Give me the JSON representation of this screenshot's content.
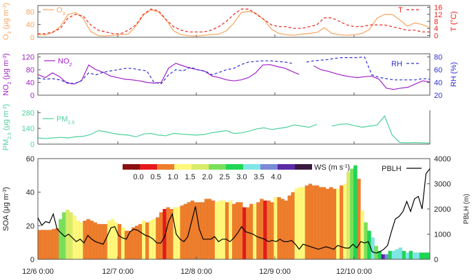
{
  "colors": {
    "o3": "#f7a35c",
    "temp": "#e8211b",
    "no2": "#a020c8",
    "rh": "#2e2fd0",
    "pm25": "#4cd19b",
    "pblh": "#000000",
    "ws_bins": [
      "#8b1010",
      "#e6191c",
      "#ee7d2c",
      "#fff87a",
      "#d9ec6a",
      "#79e05a",
      "#1fd655",
      "#7fe7e7",
      "#7a8ad8",
      "#5b2aa7",
      "#3b1a3f"
    ]
  },
  "x_ticks": [
    "12/6 0:00",
    "12/7 0:00",
    "12/8 0:00",
    "12/9 0:00",
    "12/10 0:00"
  ],
  "chart_data": [
    {
      "type": "line",
      "panel": "o3-temperature",
      "series": [
        {
          "name_main": "O",
          "name_sub": "3",
          "axis": "left",
          "values": [
            8,
            7,
            15,
            35,
            72,
            78,
            60,
            18,
            5,
            4,
            6,
            8,
            10,
            35,
            70,
            86,
            80,
            55,
            20,
            8,
            5,
            4,
            6,
            8,
            10,
            20,
            45,
            78,
            82,
            75,
            55,
            25,
            12,
            8,
            6,
            10,
            12,
            15,
            30,
            12,
            8,
            6,
            8,
            12,
            25,
            60,
            72,
            72,
            55,
            35,
            45,
            40,
            30
          ]
        },
        {
          "name_main": "T",
          "name_sub": "",
          "axis": "right",
          "values": [
            1,
            1,
            2,
            4,
            10,
            12,
            11,
            6,
            3,
            2,
            1,
            1,
            3,
            6,
            12,
            15,
            14,
            9,
            5,
            3,
            2,
            2,
            2,
            3,
            5,
            8,
            12,
            15,
            15,
            12,
            9,
            6,
            5,
            5,
            4,
            4,
            5,
            6,
            10,
            10,
            8,
            6,
            5,
            5,
            6,
            6,
            6,
            5,
            4,
            3,
            3,
            2,
            2
          ]
        }
      ],
      "left_axis": {
        "label": "O",
        "label_sub": "3",
        "label_unit": " (μg m",
        "label_exp": "-3",
        "label_end": ")",
        "ticks": [
          0,
          40,
          80
        ],
        "ylim": [
          0,
          100
        ]
      },
      "right_axis": {
        "label": "T (°C)",
        "ticks": [
          0,
          4,
          8,
          12,
          16
        ],
        "ylim": [
          -1,
          17
        ]
      }
    },
    {
      "type": "line",
      "panel": "no2-rh",
      "series": [
        {
          "name_main": "NO",
          "name_sub": "2",
          "axis": "left",
          "values": [
            65,
            55,
            70,
            58,
            38,
            35,
            45,
            95,
            80,
            72,
            60,
            55,
            50,
            48,
            45,
            40,
            38,
            40,
            85,
            100,
            92,
            85,
            80,
            75,
            60,
            55,
            48,
            45,
            48,
            55,
            70,
            95,
            96,
            90,
            85,
            75,
            65,
            null,
            92,
            80,
            75,
            68,
            62,
            58,
            55,
            58,
            60,
            50,
            22,
            18,
            22,
            25,
            35,
            45,
            42
          ]
        },
        {
          "name_main": "RH",
          "name_sub": "",
          "axis": "right",
          "values": [
            47,
            45,
            46,
            44,
            40,
            38,
            43,
            55,
            52,
            56,
            58,
            60,
            62,
            62,
            60,
            58,
            40,
            38,
            52,
            60,
            58,
            64,
            60,
            58,
            52,
            56,
            60,
            62,
            68,
            72,
            73,
            74,
            74,
            73,
            72,
            70,
            null,
            72,
            74,
            75,
            76,
            78,
            79,
            79,
            79,
            80,
            52,
            48,
            46,
            44,
            44,
            44,
            44,
            46,
            45
          ]
        }
      ],
      "left_axis": {
        "label": "NO",
        "label_sub": "2",
        "label_unit": " (μg m",
        "label_exp": "-3",
        "label_end": ")",
        "ticks": [
          0,
          40,
          80,
          120
        ],
        "ylim": [
          0,
          130
        ]
      },
      "right_axis": {
        "label": "RH (%)",
        "ticks": [
          20,
          40,
          60,
          80
        ],
        "ylim": [
          20,
          85
        ]
      }
    },
    {
      "type": "line",
      "panel": "pm25",
      "series": [
        {
          "name_main": "PM",
          "name_sub": "2.5",
          "axis": "left",
          "values": [
            55,
            50,
            55,
            60,
            55,
            65,
            70,
            85,
            120,
            110,
            95,
            85,
            80,
            65,
            90,
            95,
            80,
            75,
            95,
            90,
            85,
            80,
            85,
            100,
            110,
            120,
            95,
            100,
            115,
            135,
            145,
            130,
            140,
            150,
            170,
            160,
            150,
            175,
            null,
            160,
            175,
            180,
            165,
            150,
            160,
            170,
            250,
            80,
            15,
            12,
            15,
            12,
            10
          ]
        }
      ],
      "left_axis": {
        "label": "PM",
        "label_sub": "2.5",
        "label_unit": " (μg m",
        "label_exp": "-3",
        "label_end": ")",
        "ticks": [
          0,
          140,
          280
        ],
        "ylim": [
          0,
          300
        ]
      }
    },
    {
      "type": "bar",
      "panel": "soa-pblh",
      "xlabel": "",
      "ylabel": "SOA (μg m",
      "ylabel_exp": "-3",
      "ylabel_end": ")",
      "ylim": [
        0,
        60
      ],
      "yticks": [
        0,
        20,
        40,
        60
      ],
      "bars": [
        {
          "v": 17.5,
          "c": 2
        },
        {
          "v": 17.5,
          "c": 2
        },
        {
          "v": 17.5,
          "c": 2
        },
        {
          "v": 17.5,
          "c": 2
        },
        {
          "v": 18,
          "c": 2
        },
        {
          "v": 18.5,
          "c": 2
        },
        {
          "v": 24,
          "c": 5
        },
        {
          "v": 28,
          "c": 5
        },
        {
          "v": 29.5,
          "c": 4
        },
        {
          "v": 28,
          "c": 4
        },
        {
          "v": 26,
          "c": 3
        },
        {
          "v": 23,
          "c": 3
        },
        {
          "v": 22,
          "c": 3
        },
        {
          "v": 23,
          "c": 2
        },
        {
          "v": 24,
          "c": 2
        },
        {
          "v": 23,
          "c": 2
        },
        {
          "v": 22,
          "c": 2
        },
        {
          "v": 21,
          "c": 2
        },
        {
          "v": 21,
          "c": 2
        },
        {
          "v": 21,
          "c": 2
        },
        {
          "v": 23,
          "c": 3
        },
        {
          "v": 24,
          "c": 3
        },
        {
          "v": 22,
          "c": 3
        },
        {
          "v": 21,
          "c": 2
        },
        {
          "v": 19,
          "c": 3
        },
        {
          "v": 17,
          "c": 2
        },
        {
          "v": 17,
          "c": 2
        },
        {
          "v": 19,
          "c": 2
        },
        {
          "v": 20,
          "c": 2
        },
        {
          "v": 21,
          "c": 2
        },
        {
          "v": 23,
          "c": 3
        },
        {
          "v": 22,
          "c": 2
        },
        {
          "v": 23,
          "c": 3
        },
        {
          "v": 24,
          "c": 3
        },
        {
          "v": 25,
          "c": 2
        },
        {
          "v": 28,
          "c": 2
        },
        {
          "v": 30,
          "c": 1
        },
        {
          "v": 31,
          "c": 2
        },
        {
          "v": 30,
          "c": 2
        },
        {
          "v": 31,
          "c": 3
        },
        {
          "v": 31,
          "c": 3
        },
        {
          "v": 32,
          "c": 2
        },
        {
          "v": 33,
          "c": 2
        },
        {
          "v": 34,
          "c": 2
        },
        {
          "v": 35,
          "c": 2
        },
        {
          "v": 34,
          "c": 2
        },
        {
          "v": 34,
          "c": 2
        },
        {
          "v": 34,
          "c": 2
        },
        {
          "v": 36,
          "c": 2
        },
        {
          "v": 36,
          "c": 2
        },
        {
          "v": 35,
          "c": 2
        },
        {
          "v": 34,
          "c": 3
        },
        {
          "v": 35,
          "c": 3
        },
        {
          "v": 35,
          "c": 3
        },
        {
          "v": 34,
          "c": 2
        },
        {
          "v": 35,
          "c": 3
        },
        {
          "v": 33,
          "c": 2
        },
        {
          "v": 34,
          "c": 2
        },
        {
          "v": 34,
          "c": 2
        },
        {
          "v": 31,
          "c": 1
        },
        {
          "v": 31,
          "c": 2
        },
        {
          "v": 33,
          "c": 2
        },
        {
          "v": 33,
          "c": 3
        },
        {
          "v": 34,
          "c": 2
        },
        {
          "v": 36,
          "c": 2
        },
        {
          "v": 35,
          "c": 1
        },
        {
          "v": 35,
          "c": 2
        },
        {
          "v": 34,
          "c": 2
        },
        {
          "v": 37,
          "c": 3
        },
        {
          "v": 37,
          "c": 2
        },
        {
          "v": 36,
          "c": 2
        },
        {
          "v": 35,
          "c": 2
        },
        {
          "v": 38,
          "c": 2
        },
        {
          "v": 40,
          "c": 2
        },
        {
          "v": 42,
          "c": 3
        },
        {
          "v": 43,
          "c": 3
        },
        {
          "v": 43,
          "c": 3
        },
        {
          "v": 44,
          "c": 2
        },
        {
          "v": 45,
          "c": 2
        },
        {
          "v": 44,
          "c": 2
        },
        {
          "v": 44,
          "c": 2
        },
        {
          "v": 43,
          "c": 2
        },
        {
          "v": 43,
          "c": 2
        },
        {
          "v": 42,
          "c": 2
        },
        {
          "v": 43,
          "c": 2
        },
        {
          "v": 42,
          "c": 2
        },
        {
          "v": 42,
          "c": 3
        },
        {
          "v": 44,
          "c": 2
        },
        {
          "v": 45,
          "c": 3
        },
        {
          "v": 52,
          "c": 4
        },
        {
          "v": 54,
          "c": 5
        },
        {
          "v": 56,
          "c": 6
        },
        {
          "v": 48,
          "c": 2
        },
        {
          "v": 29,
          "c": 3
        },
        {
          "v": 22,
          "c": 5
        },
        {
          "v": 17,
          "c": 6
        },
        {
          "v": 13,
          "c": 7
        },
        {
          "v": 8,
          "c": 5
        },
        {
          "v": 5,
          "c": 6
        },
        {
          "v": 3,
          "c": 9
        },
        {
          "v": 3,
          "c": 8
        },
        {
          "v": 5,
          "c": 6
        },
        {
          "v": 5,
          "c": 7
        },
        {
          "v": 6,
          "c": 7
        },
        {
          "v": 7,
          "c": 7
        },
        {
          "v": 5,
          "c": 6
        },
        {
          "v": 4,
          "c": 7
        },
        {
          "v": 5,
          "c": 6
        },
        {
          "v": 4,
          "c": 7
        },
        {
          "v": 4,
          "c": 7
        },
        {
          "v": 4,
          "c": 6
        },
        {
          "v": 4,
          "c": 6
        },
        {
          "v": 4,
          "c": 6
        }
      ],
      "pblh": {
        "name": "PBLH",
        "axis_label": "PBLH (m)",
        "ticks": [
          0,
          1000,
          2000,
          3000,
          4000
        ],
        "ylim": [
          0,
          4000
        ],
        "values": [
          1650,
          1350,
          1500,
          1450,
          1800,
          1200,
          1050,
          900,
          1000,
          850,
          700,
          800,
          650,
          950,
          800,
          700,
          650,
          600,
          900,
          1250,
          1300,
          950,
          850,
          800,
          1100,
          1200,
          1150,
          1050,
          950,
          900,
          800,
          650,
          650,
          900,
          1500,
          1800,
          1000,
          800,
          700,
          900,
          1500,
          2100,
          1200,
          800,
          800,
          800,
          900,
          700,
          800,
          800,
          700,
          850,
          1050,
          1300,
          1100,
          1050,
          1000,
          900,
          850,
          800,
          700,
          750,
          700,
          800,
          700,
          700,
          750,
          600,
          400,
          600,
          550,
          500,
          450,
          400,
          450,
          500,
          450,
          400,
          550,
          500,
          450,
          450,
          600,
          450,
          700,
          650,
          700,
          300,
          250,
          300,
          400,
          550,
          1100,
          1600,
          1700,
          1900,
          2300,
          1900,
          2400,
          2500,
          2000,
          3400,
          3600
        ]
      },
      "ws_legend": {
        "title_main": "WS (m s",
        "title_exp": "-1",
        "title_end": ")",
        "labels": [
          "0.0",
          "0.5",
          "1.0",
          "1.5",
          "2.0",
          "2.5",
          "3.0",
          "3.5",
          "4.0"
        ]
      }
    }
  ]
}
